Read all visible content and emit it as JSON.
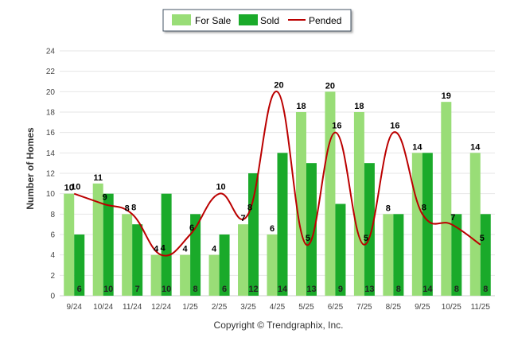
{
  "chart_data": {
    "type": "bar",
    "categories": [
      "9/24",
      "10/24",
      "11/24",
      "12/24",
      "1/25",
      "2/25",
      "3/25",
      "4/25",
      "5/25",
      "6/25",
      "7/25",
      "8/25",
      "9/25",
      "10/25",
      "11/25"
    ],
    "series": [
      {
        "name": "For Sale",
        "kind": "bar",
        "color": "#99dd77",
        "values": [
          10,
          11,
          8,
          4,
          4,
          4,
          7,
          6,
          18,
          20,
          18,
          8,
          14,
          19,
          14
        ]
      },
      {
        "name": "Sold",
        "kind": "bar",
        "color": "#1aaa2a",
        "values": [
          6,
          10,
          7,
          10,
          8,
          6,
          12,
          14,
          13,
          9,
          13,
          8,
          14,
          8,
          8
        ]
      },
      {
        "name": "Pended",
        "kind": "line",
        "color": "#bb0000",
        "values": [
          10,
          9,
          8,
          4,
          6,
          10,
          8,
          20,
          5,
          16,
          5,
          16,
          8,
          7,
          5
        ]
      }
    ],
    "title": "",
    "xlabel": "",
    "ylabel": "Number of Homes",
    "ylim": [
      0,
      24
    ],
    "yticks": [
      0,
      2,
      4,
      6,
      8,
      10,
      12,
      14,
      16,
      18,
      20,
      22,
      24
    ],
    "grid": true,
    "legend": "top-center",
    "footer": "Copyright © Trendgraphix, Inc."
  }
}
